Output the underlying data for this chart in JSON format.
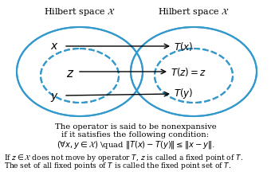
{
  "bg_color": "#ffffff",
  "ellipse_color": "#3399cc",
  "ellipse_lw": 1.5,
  "dashed_ellipse_color": "#3399cc",
  "dashed_ellipse_lw": 1.5,
  "arrow_color": "#000000",
  "text_color": "#000000",
  "title_left": "Hilbert space $\\mathcal{X}$",
  "title_right": "Hilbert space $\\mathcal{X}$",
  "label_x": "$x$",
  "label_z": "$z$",
  "label_y": "$y$",
  "label_Tx": "$T(x)$",
  "label_Tz": "$T(z) = z$",
  "label_Ty": "$T(y)$",
  "text_line1": "The operator is said to be nonexpansive",
  "text_line2": "if it satisfies the following condition:",
  "text_line3": "$(\\forall x, y \\in \\mathcal{X})$ \\quad $\\|T(x) - T(y)\\| \\leq \\|x - y\\|.$",
  "text_line4": "If $z \\in \\mathcal{X}$ does not move by operator $T$, $z$ is called a fixed point of $T$.",
  "text_line5": "The set of all fixed points of $T$ is called the fixed point set of $T$."
}
